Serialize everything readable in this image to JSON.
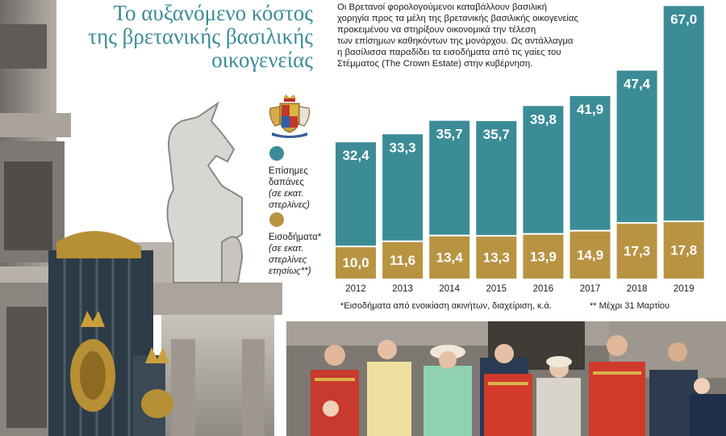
{
  "title": {
    "line1": "Το αυξανόμενο κόστος",
    "line2": "της βρετανικής βασιλικής",
    "line3": "οικογενείας"
  },
  "intro": {
    "line1": "Οι Βρετανοί φορολογούμενοι καταβάλλουν βασιλική",
    "line2": "χορηγία προς τα μέλη της βρετανικής βασιλικής οικογενείας",
    "line3": "προκειμένου να στηρίξουν οικονομικά την τέλεση",
    "line4": "των επίσημων καθηκόντων της μονάρχου. Ως αντάλλαγμα",
    "line5": "η βασίλισσα παραδίδει τα εισοδήματα από τις γαίες του",
    "line6": "Στέμματος (The Crown Estate) στην κυβέρνηση."
  },
  "legend": {
    "official": {
      "line1": "Επίσημες",
      "line2": "δαπάνες",
      "unit1": "(σε εκατ.",
      "unit2": "στερλίνες)"
    },
    "income": {
      "line1": "Εισοδήματα*",
      "unit1": "(σε εκατ.",
      "unit2": "στερλίνες",
      "unit3": "ετησίως**)"
    }
  },
  "footnotes": {
    "income_note": "*Εισοδήματα από ενοικίαση ακινήτων, διαχείριση, κ.ά.",
    "year_note": "** Μέχρι 31 Μαρτίου"
  },
  "colors": {
    "official": "#3b8c97",
    "income": "#b89342",
    "title": "#3b8c97"
  },
  "icons": {
    "crest": "royal-coat-of-arms-icon"
  },
  "chart_data": {
    "type": "bar",
    "stacked": true,
    "categories": [
      "2012",
      "2013",
      "2014",
      "2015",
      "2016",
      "2017",
      "2018",
      "2019"
    ],
    "series": [
      {
        "name": "Εισοδήματα",
        "values": [
          10.0,
          11.6,
          13.4,
          13.3,
          13.9,
          14.9,
          17.3,
          17.8
        ],
        "labels": [
          "10,0",
          "11,6",
          "13,4",
          "13,3",
          "13,9",
          "14,9",
          "17,3",
          "17,8"
        ],
        "color": "#b89342"
      },
      {
        "name": "Επίσημες δαπάνες",
        "values": [
          32.4,
          33.3,
          35.7,
          35.7,
          39.8,
          41.9,
          47.4,
          67.0
        ],
        "labels": [
          "32,4",
          "33,3",
          "35,7",
          "35,7",
          "39,8",
          "41,9",
          "47,4",
          "67,0"
        ],
        "color": "#3b8c97"
      }
    ],
    "grid": false,
    "legend": "left"
  }
}
